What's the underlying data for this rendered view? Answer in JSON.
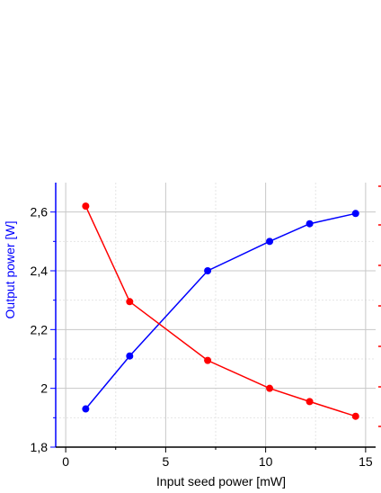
{
  "chart_data": {
    "type": "line",
    "xlabel": "Input seed power [mW]",
    "ylabel": "Output power [W]",
    "xlim": [
      -0.5,
      15.5
    ],
    "ylim": [
      1.8,
      2.7
    ],
    "xticks": [
      0,
      5,
      10,
      15
    ],
    "xtick_labels": [
      "0",
      "5",
      "10",
      "15"
    ],
    "yticks": [
      1.8,
      2.0,
      2.2,
      2.4,
      2.6
    ],
    "ytick_labels": [
      "1,8",
      "2",
      "2,2",
      "2,4",
      "2,6"
    ],
    "grid": true,
    "series": [
      {
        "axis": "left",
        "color": "#0000ff",
        "x": [
          1.0,
          3.2,
          7.1,
          10.2,
          12.2,
          14.5
        ],
        "y": [
          1.93,
          2.11,
          2.4,
          2.5,
          2.56,
          2.595
        ]
      },
      {
        "axis": "right",
        "color": "#ff0000",
        "x": [
          1.0,
          3.2,
          7.1,
          10.2,
          12.2,
          14.5
        ],
        "y": [
          2.62,
          2.295,
          2.095,
          2.0,
          1.955,
          1.905
        ]
      }
    ],
    "right_axis": {
      "color": "#ff0000",
      "ticks_visible": true,
      "labels_visible": false
    }
  },
  "colors": {
    "left_axis": "#0000ff",
    "right_axis": "#ff0000",
    "grid": "#c8c8c8",
    "minor_grid": "#e6e6e6"
  }
}
